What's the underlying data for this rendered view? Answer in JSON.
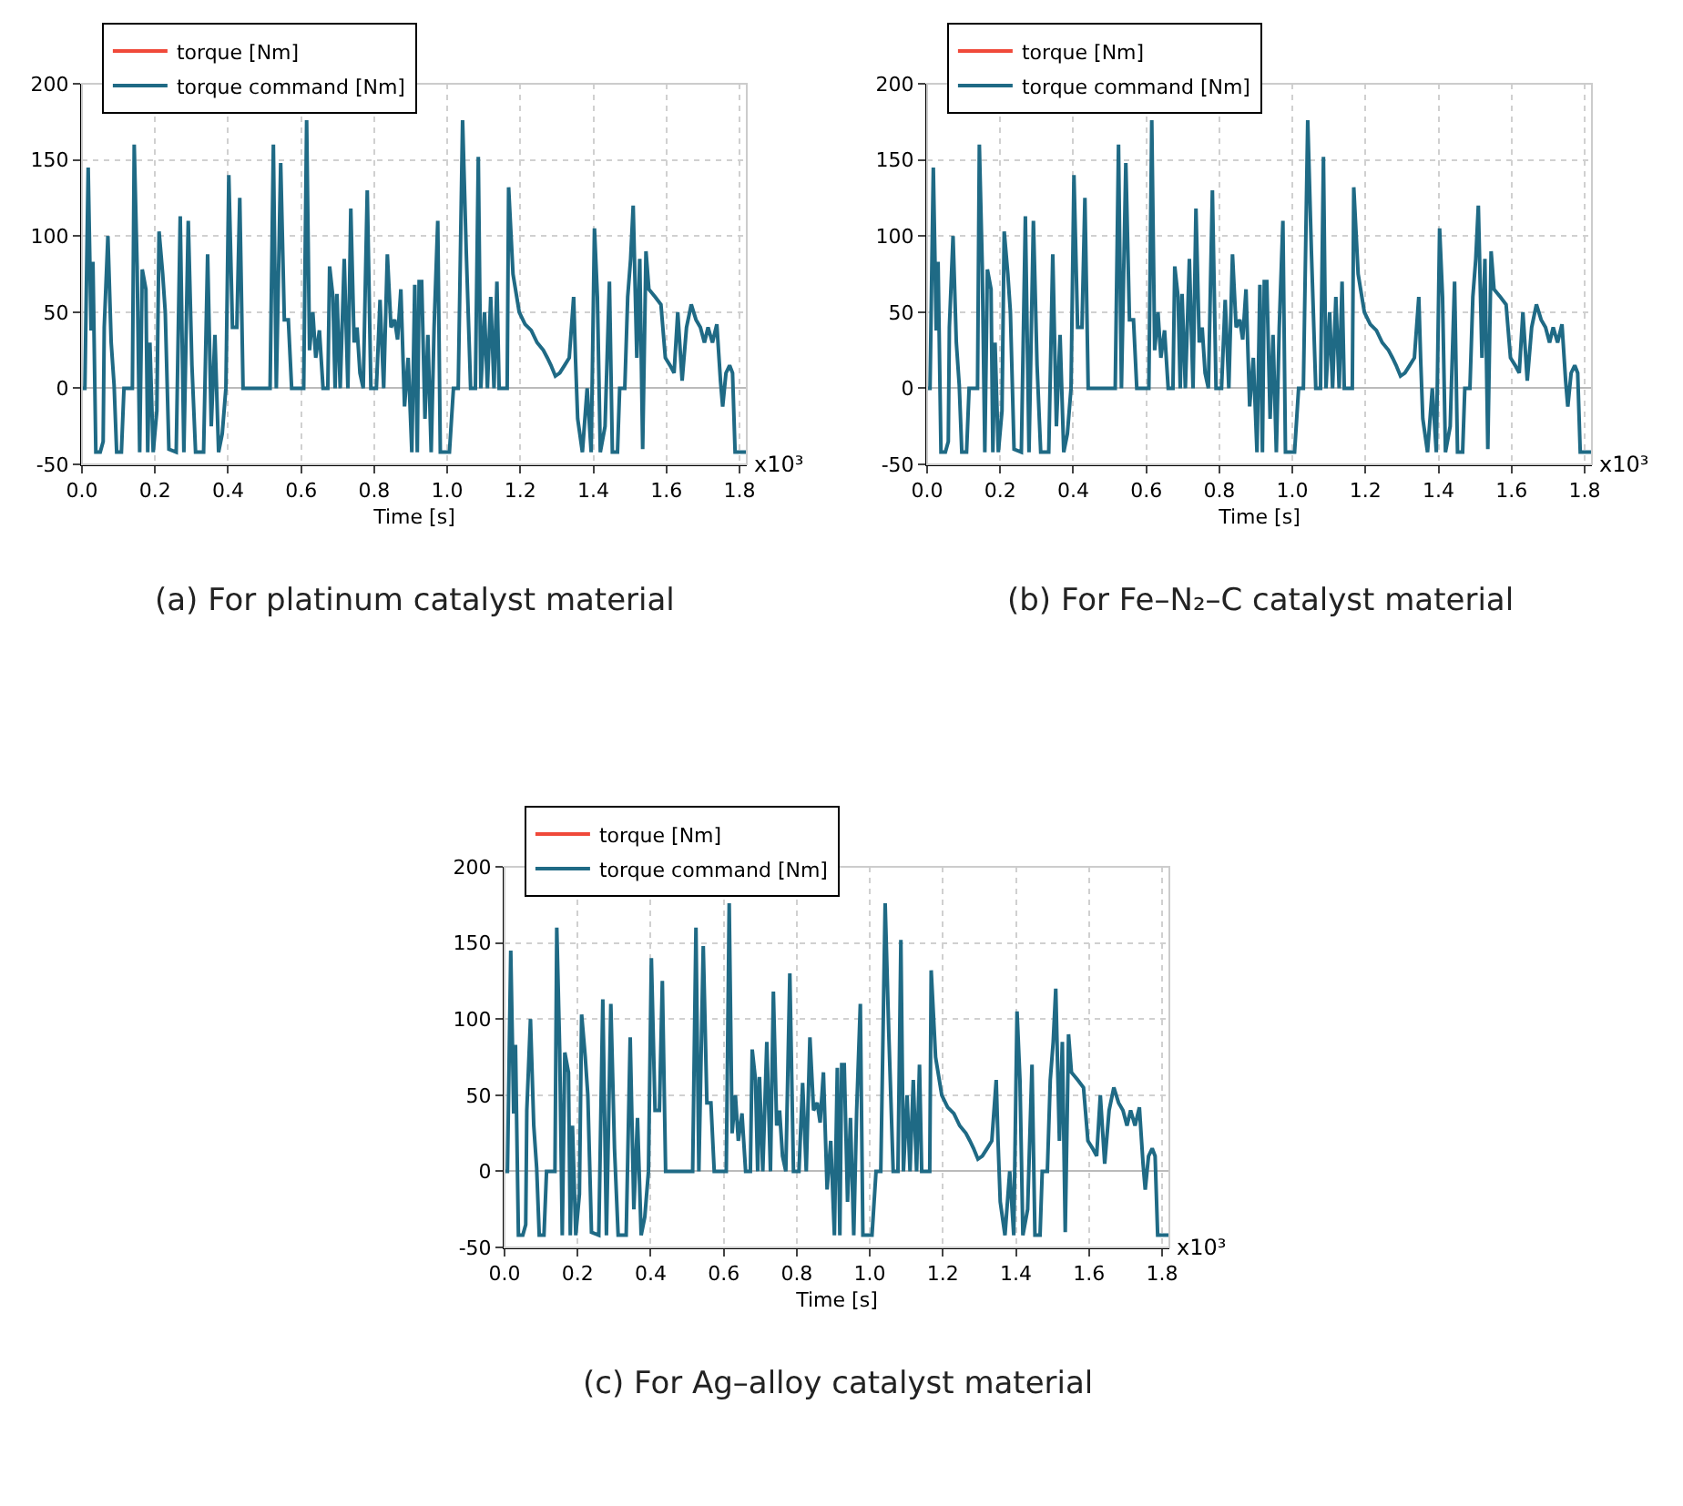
{
  "chart_data": [
    {
      "type": "line",
      "xlabel": "Time [s]",
      "annotations": [
        "x10³",
        "(a) For platinum catalyst material"
      ],
      "legend": "top left",
      "grid": true,
      "xlim": [
        0,
        1.82
      ],
      "ylim": [
        -50,
        200
      ],
      "xticks": [
        {
          "value": 0,
          "label": "0.0"
        },
        {
          "value": 0.2,
          "label": "0.2"
        },
        {
          "value": 0.4,
          "label": "0.4"
        },
        {
          "value": 0.6,
          "label": "0.6"
        },
        {
          "value": 0.8,
          "label": "0.8"
        },
        {
          "value": 1,
          "label": "1.0"
        },
        {
          "value": 1.2,
          "label": "1.2"
        },
        {
          "value": 1.4,
          "label": "1.4"
        },
        {
          "value": 1.6,
          "label": "1.6"
        },
        {
          "value": 1.8,
          "label": "1.8"
        }
      ],
      "yticks": [
        -50,
        0,
        50,
        100,
        150,
        200
      ],
      "x": [
        0,
        0.008,
        0.017,
        0.025,
        0.03,
        0.038,
        0.05,
        0.058,
        0.061,
        0.071,
        0.08,
        0.088,
        0.095,
        0.108,
        0.115,
        0.138,
        0.143,
        0.151,
        0.158,
        0.165,
        0.175,
        0.18,
        0.186,
        0.195,
        0.205,
        0.211,
        0.221,
        0.228,
        0.238,
        0.258,
        0.269,
        0.279,
        0.291,
        0.301,
        0.311,
        0.333,
        0.344,
        0.354,
        0.364,
        0.374,
        0.384,
        0.394,
        0.402,
        0.412,
        0.424,
        0.432,
        0.441,
        0.515,
        0.524,
        0.532,
        0.544,
        0.554,
        0.565,
        0.574,
        0.607,
        0.615,
        0.623,
        0.632,
        0.64,
        0.65,
        0.66,
        0.673,
        0.678,
        0.687,
        0.693,
        0.698,
        0.707,
        0.718,
        0.728,
        0.736,
        0.745,
        0.753,
        0.761,
        0.77,
        0.781,
        0.791,
        0.806,
        0.816,
        0.826,
        0.836,
        0.846,
        0.856,
        0.864,
        0.873,
        0.883,
        0.893,
        0.903,
        0.911,
        0.918,
        0.923,
        0.93,
        0.939,
        0.947,
        0.956,
        0.964,
        0.974,
        0.981,
        1.006,
        1.017,
        1.03,
        1.042,
        1.052,
        1.064,
        1.077,
        1.085,
        1.092,
        1.102,
        1.11,
        1.119,
        1.128,
        1.136,
        1.142,
        1.164,
        1.168,
        1.18,
        1.197,
        1.213,
        1.23,
        1.246,
        1.263,
        1.274,
        1.284,
        1.296,
        1.308,
        1.321,
        1.334,
        1.346,
        1.351,
        1.357,
        1.37,
        1.383,
        1.394,
        1.403,
        1.411,
        1.419,
        1.432,
        1.444,
        1.452,
        1.466,
        1.472,
        1.486,
        1.494,
        1.502,
        1.509,
        1.519,
        1.527,
        1.535,
        1.544,
        1.552,
        1.569,
        1.585,
        1.597,
        1.61,
        1.621,
        1.631,
        1.643,
        1.655,
        1.668,
        1.681,
        1.693,
        1.704,
        1.714,
        1.726,
        1.738,
        1.748,
        1.754,
        1.763,
        1.773,
        1.781,
        1.788,
        1.818
      ],
      "series": [
        {
          "name": "torque [Nm]",
          "color": "#f0493a",
          "values": [
            null,
            null,
            null,
            null,
            null,
            null,
            null,
            null,
            null,
            null,
            null,
            null,
            null,
            null,
            null,
            null,
            null,
            null,
            null,
            null,
            null,
            null,
            null,
            null,
            null,
            null,
            null,
            null,
            null,
            null,
            null,
            null,
            null,
            null,
            null,
            null,
            null,
            null,
            null,
            null,
            null,
            null,
            null,
            null,
            null,
            null,
            null,
            null,
            null,
            null,
            null,
            null,
            null,
            null,
            null,
            null,
            null,
            null,
            null,
            null,
            null,
            null,
            null,
            null,
            null,
            null,
            null,
            null,
            null,
            null,
            null,
            null,
            null,
            null,
            null,
            null,
            null,
            null,
            null,
            null,
            null,
            null,
            null,
            null,
            null,
            null,
            null,
            null,
            null,
            null,
            null,
            null,
            null,
            null,
            null,
            null,
            null,
            null,
            null,
            null,
            null,
            null,
            null,
            null,
            null,
            null,
            null,
            null,
            null,
            null,
            null,
            null,
            null,
            null,
            null,
            null,
            null,
            null,
            null,
            null,
            null,
            null,
            null,
            null,
            null,
            null,
            null,
            null,
            null,
            null,
            null,
            null,
            null,
            null,
            null,
            null,
            null,
            null,
            null,
            null,
            null,
            null,
            null,
            null,
            null,
            null,
            null,
            null,
            null,
            null,
            null,
            null,
            null,
            null,
            null,
            null,
            null,
            null,
            null,
            null,
            null,
            null,
            null,
            null,
            null,
            null,
            null,
            null,
            null,
            null,
            null
          ]
        },
        {
          "name": "torque command [Nm]",
          "color": "#1f6a85",
          "values": [
            0,
            0,
            145,
            38,
            83,
            -42,
            -42,
            -35,
            40,
            100,
            30,
            2,
            -42,
            -42,
            0,
            0,
            160,
            80,
            -42,
            78,
            65,
            -42,
            30,
            -42,
            -15,
            103,
            75,
            50,
            -40,
            -42,
            113,
            -42,
            110,
            15,
            -42,
            -42,
            88,
            -25,
            35,
            -42,
            -30,
            0,
            140,
            40,
            40,
            125,
            0,
            0,
            160,
            0,
            148,
            45,
            45,
            0,
            0,
            176,
            25,
            50,
            20,
            38,
            0,
            0,
            80,
            60,
            0,
            62,
            0,
            85,
            0,
            118,
            30,
            40,
            10,
            0,
            130,
            0,
            0,
            58,
            0,
            88,
            40,
            45,
            32,
            65,
            -12,
            20,
            -42,
            68,
            -42,
            70,
            70,
            -20,
            35,
            -42,
            40,
            110,
            -42,
            -42,
            0,
            0,
            176,
            90,
            0,
            0,
            152,
            0,
            50,
            0,
            60,
            0,
            70,
            0,
            0,
            132,
            75,
            50,
            42,
            38,
            30,
            25,
            20,
            15,
            8,
            10,
            15,
            20,
            60,
            20,
            -20,
            -42,
            0,
            -42,
            105,
            60,
            -42,
            -25,
            70,
            -42,
            -42,
            0,
            0,
            60,
            85,
            120,
            20,
            85,
            -40,
            90,
            65,
            60,
            55,
            20,
            15,
            10,
            50,
            5,
            40,
            55,
            45,
            40,
            30,
            40,
            30,
            42,
            5,
            -12,
            10,
            15,
            10,
            -42,
            -42
          ]
        }
      ]
    },
    {
      "type": "line",
      "xlabel": "Time [s]",
      "annotations": [
        "x10³",
        "(b) For Fe–N₂–C catalyst material"
      ],
      "legend": "top left",
      "grid": true,
      "xlim": [
        0,
        1.82
      ],
      "ylim": [
        -50,
        200
      ],
      "xticks": [
        {
          "value": 0,
          "label": "0.0"
        },
        {
          "value": 0.2,
          "label": "0.2"
        },
        {
          "value": 0.4,
          "label": "0.4"
        },
        {
          "value": 0.6,
          "label": "0.6"
        },
        {
          "value": 0.8,
          "label": "0.8"
        },
        {
          "value": 1,
          "label": "1.0"
        },
        {
          "value": 1.2,
          "label": "1.2"
        },
        {
          "value": 1.4,
          "label": "1.4"
        },
        {
          "value": 1.6,
          "label": "1.6"
        },
        {
          "value": 1.8,
          "label": "1.8"
        }
      ],
      "yticks": [
        -50,
        0,
        50,
        100,
        150,
        200
      ],
      "x": [
        0,
        0.008,
        0.017,
        0.025,
        0.03,
        0.038,
        0.05,
        0.058,
        0.061,
        0.071,
        0.08,
        0.088,
        0.095,
        0.108,
        0.115,
        0.138,
        0.143,
        0.151,
        0.158,
        0.165,
        0.175,
        0.18,
        0.186,
        0.195,
        0.205,
        0.211,
        0.221,
        0.228,
        0.238,
        0.258,
        0.269,
        0.279,
        0.291,
        0.301,
        0.311,
        0.333,
        0.344,
        0.354,
        0.364,
        0.374,
        0.384,
        0.394,
        0.402,
        0.412,
        0.424,
        0.432,
        0.441,
        0.515,
        0.524,
        0.532,
        0.544,
        0.554,
        0.565,
        0.574,
        0.607,
        0.615,
        0.623,
        0.632,
        0.64,
        0.65,
        0.66,
        0.673,
        0.678,
        0.687,
        0.693,
        0.698,
        0.707,
        0.718,
        0.728,
        0.736,
        0.745,
        0.753,
        0.761,
        0.77,
        0.781,
        0.791,
        0.806,
        0.816,
        0.826,
        0.836,
        0.846,
        0.856,
        0.864,
        0.873,
        0.883,
        0.893,
        0.903,
        0.911,
        0.918,
        0.923,
        0.93,
        0.939,
        0.947,
        0.956,
        0.964,
        0.974,
        0.981,
        1.006,
        1.017,
        1.03,
        1.042,
        1.052,
        1.064,
        1.077,
        1.085,
        1.092,
        1.102,
        1.11,
        1.119,
        1.128,
        1.136,
        1.142,
        1.164,
        1.168,
        1.18,
        1.197,
        1.213,
        1.23,
        1.246,
        1.263,
        1.274,
        1.284,
        1.296,
        1.308,
        1.321,
        1.334,
        1.346,
        1.351,
        1.357,
        1.37,
        1.383,
        1.394,
        1.403,
        1.411,
        1.419,
        1.432,
        1.444,
        1.452,
        1.466,
        1.472,
        1.486,
        1.494,
        1.502,
        1.509,
        1.519,
        1.527,
        1.535,
        1.544,
        1.552,
        1.569,
        1.585,
        1.597,
        1.61,
        1.621,
        1.631,
        1.643,
        1.655,
        1.668,
        1.681,
        1.693,
        1.704,
        1.714,
        1.726,
        1.738,
        1.748,
        1.754,
        1.763,
        1.773,
        1.781,
        1.788,
        1.818
      ],
      "series": [
        {
          "name": "torque [Nm]",
          "color": "#f0493a",
          "values": [
            null,
            null,
            null,
            null,
            null,
            null,
            null,
            null,
            null,
            null,
            null,
            null,
            null,
            null,
            null,
            null,
            null,
            null,
            null,
            null,
            null,
            null,
            null,
            null,
            null,
            null,
            null,
            null,
            null,
            null,
            null,
            null,
            null,
            null,
            null,
            null,
            null,
            null,
            null,
            null,
            null,
            null,
            null,
            null,
            null,
            null,
            null,
            null,
            null,
            null,
            null,
            null,
            null,
            null,
            null,
            null,
            null,
            null,
            null,
            null,
            null,
            null,
            null,
            null,
            null,
            null,
            null,
            null,
            null,
            null,
            null,
            null,
            null,
            null,
            null,
            null,
            null,
            null,
            null,
            null,
            null,
            null,
            null,
            null,
            null,
            null,
            null,
            null,
            null,
            null,
            null,
            null,
            null,
            null,
            null,
            null,
            null,
            null,
            null,
            null,
            null,
            null,
            null,
            null,
            null,
            null,
            null,
            null,
            null,
            null,
            null,
            null,
            null,
            null,
            null,
            null,
            null,
            null,
            null,
            null,
            null,
            null,
            null,
            null,
            null,
            null,
            null,
            null,
            null,
            null,
            null,
            null,
            null,
            null,
            null,
            null,
            null,
            null,
            null,
            null,
            null,
            null,
            null,
            null,
            null,
            null,
            null,
            null,
            null,
            null,
            null,
            null,
            null,
            null,
            null,
            null,
            null,
            null,
            null,
            null,
            null,
            null,
            null,
            null,
            null,
            null,
            null,
            null,
            null,
            null,
            null
          ]
        },
        {
          "name": "torque command [Nm]",
          "color": "#1f6a85",
          "values": [
            0,
            0,
            145,
            38,
            83,
            -42,
            -42,
            -35,
            40,
            100,
            30,
            2,
            -42,
            -42,
            0,
            0,
            160,
            80,
            -42,
            78,
            65,
            -42,
            30,
            -42,
            -15,
            103,
            75,
            50,
            -40,
            -42,
            113,
            -42,
            110,
            15,
            -42,
            -42,
            88,
            -25,
            35,
            -42,
            -30,
            0,
            140,
            40,
            40,
            125,
            0,
            0,
            160,
            0,
            148,
            45,
            45,
            0,
            0,
            176,
            25,
            50,
            20,
            38,
            0,
            0,
            80,
            60,
            0,
            62,
            0,
            85,
            0,
            118,
            30,
            40,
            10,
            0,
            130,
            0,
            0,
            58,
            0,
            88,
            40,
            45,
            32,
            65,
            -12,
            20,
            -42,
            68,
            -42,
            70,
            70,
            -20,
            35,
            -42,
            40,
            110,
            -42,
            -42,
            0,
            0,
            176,
            90,
            0,
            0,
            152,
            0,
            50,
            0,
            60,
            0,
            70,
            0,
            0,
            132,
            75,
            50,
            42,
            38,
            30,
            25,
            20,
            15,
            8,
            10,
            15,
            20,
            60,
            20,
            -20,
            -42,
            0,
            -42,
            105,
            60,
            -42,
            -25,
            70,
            -42,
            -42,
            0,
            0,
            60,
            85,
            120,
            20,
            85,
            -40,
            90,
            65,
            60,
            55,
            20,
            15,
            10,
            50,
            5,
            40,
            55,
            45,
            40,
            30,
            40,
            30,
            42,
            5,
            -12,
            10,
            15,
            10,
            -42,
            -42
          ]
        }
      ]
    },
    {
      "type": "line",
      "xlabel": "Time [s]",
      "annotations": [
        "x10³",
        "(c) For Ag–alloy catalyst material"
      ],
      "legend": "top left",
      "grid": true,
      "xlim": [
        0,
        1.82
      ],
      "ylim": [
        -50,
        200
      ],
      "xticks": [
        {
          "value": 0,
          "label": "0.0"
        },
        {
          "value": 0.2,
          "label": "0.2"
        },
        {
          "value": 0.4,
          "label": "0.4"
        },
        {
          "value": 0.6,
          "label": "0.6"
        },
        {
          "value": 0.8,
          "label": "0.8"
        },
        {
          "value": 1,
          "label": "1.0"
        },
        {
          "value": 1.2,
          "label": "1.2"
        },
        {
          "value": 1.4,
          "label": "1.4"
        },
        {
          "value": 1.6,
          "label": "1.6"
        },
        {
          "value": 1.8,
          "label": "1.8"
        }
      ],
      "yticks": [
        -50,
        0,
        50,
        100,
        150,
        200
      ],
      "x": [
        0,
        0.008,
        0.017,
        0.025,
        0.03,
        0.038,
        0.05,
        0.058,
        0.061,
        0.071,
        0.08,
        0.088,
        0.095,
        0.108,
        0.115,
        0.138,
        0.143,
        0.151,
        0.158,
        0.165,
        0.175,
        0.18,
        0.186,
        0.195,
        0.205,
        0.211,
        0.221,
        0.228,
        0.238,
        0.258,
        0.269,
        0.279,
        0.291,
        0.301,
        0.311,
        0.333,
        0.344,
        0.354,
        0.364,
        0.374,
        0.384,
        0.394,
        0.402,
        0.412,
        0.424,
        0.432,
        0.441,
        0.515,
        0.524,
        0.532,
        0.544,
        0.554,
        0.565,
        0.574,
        0.607,
        0.615,
        0.623,
        0.632,
        0.64,
        0.65,
        0.66,
        0.673,
        0.678,
        0.687,
        0.693,
        0.698,
        0.707,
        0.718,
        0.728,
        0.736,
        0.745,
        0.753,
        0.761,
        0.77,
        0.781,
        0.791,
        0.806,
        0.816,
        0.826,
        0.836,
        0.846,
        0.856,
        0.864,
        0.873,
        0.883,
        0.893,
        0.903,
        0.911,
        0.918,
        0.923,
        0.93,
        0.939,
        0.947,
        0.956,
        0.964,
        0.974,
        0.981,
        1.006,
        1.017,
        1.03,
        1.042,
        1.052,
        1.064,
        1.077,
        1.085,
        1.092,
        1.102,
        1.11,
        1.119,
        1.128,
        1.136,
        1.142,
        1.164,
        1.168,
        1.18,
        1.197,
        1.213,
        1.23,
        1.246,
        1.263,
        1.274,
        1.284,
        1.296,
        1.308,
        1.321,
        1.334,
        1.346,
        1.351,
        1.357,
        1.37,
        1.383,
        1.394,
        1.403,
        1.411,
        1.419,
        1.432,
        1.444,
        1.452,
        1.466,
        1.472,
        1.486,
        1.494,
        1.502,
        1.509,
        1.519,
        1.527,
        1.535,
        1.544,
        1.552,
        1.569,
        1.585,
        1.597,
        1.61,
        1.621,
        1.631,
        1.643,
        1.655,
        1.668,
        1.681,
        1.693,
        1.704,
        1.714,
        1.726,
        1.738,
        1.748,
        1.754,
        1.763,
        1.773,
        1.781,
        1.788,
        1.818
      ],
      "series": [
        {
          "name": "torque [Nm]",
          "color": "#f0493a",
          "values": [
            null,
            null,
            null,
            null,
            null,
            null,
            null,
            null,
            null,
            null,
            null,
            null,
            null,
            null,
            null,
            null,
            null,
            null,
            null,
            null,
            null,
            null,
            null,
            null,
            null,
            null,
            null,
            null,
            null,
            null,
            null,
            null,
            null,
            null,
            null,
            null,
            null,
            null,
            null,
            null,
            null,
            null,
            null,
            null,
            null,
            null,
            null,
            null,
            null,
            null,
            null,
            null,
            null,
            null,
            null,
            null,
            null,
            null,
            null,
            null,
            null,
            null,
            null,
            null,
            null,
            null,
            null,
            null,
            null,
            null,
            null,
            null,
            null,
            null,
            null,
            null,
            null,
            null,
            null,
            null,
            null,
            null,
            null,
            null,
            null,
            null,
            null,
            null,
            null,
            null,
            null,
            null,
            null,
            null,
            null,
            null,
            null,
            null,
            null,
            null,
            null,
            null,
            null,
            null,
            null,
            null,
            null,
            null,
            null,
            null,
            null,
            null,
            null,
            null,
            null,
            null,
            null,
            null,
            null,
            null,
            null,
            null,
            null,
            null,
            null,
            null,
            null,
            null,
            null,
            null,
            null,
            null,
            null,
            null,
            null,
            null,
            null,
            null,
            null,
            null,
            null,
            null,
            null,
            null,
            null,
            null,
            null,
            null,
            null,
            null,
            null,
            null,
            null,
            null,
            null,
            null,
            null,
            null,
            null,
            null,
            null,
            null,
            null,
            null,
            null,
            null,
            null,
            null,
            null,
            null,
            null
          ]
        },
        {
          "name": "torque command [Nm]",
          "color": "#1f6a85",
          "values": [
            0,
            0,
            145,
            38,
            83,
            -42,
            -42,
            -35,
            40,
            100,
            30,
            2,
            -42,
            -42,
            0,
            0,
            160,
            80,
            -42,
            78,
            65,
            -42,
            30,
            -42,
            -15,
            103,
            75,
            50,
            -40,
            -42,
            113,
            -42,
            110,
            15,
            -42,
            -42,
            88,
            -25,
            35,
            -42,
            -30,
            0,
            140,
            40,
            40,
            125,
            0,
            0,
            160,
            0,
            148,
            45,
            45,
            0,
            0,
            176,
            25,
            50,
            20,
            38,
            0,
            0,
            80,
            60,
            0,
            62,
            0,
            85,
            0,
            118,
            30,
            40,
            10,
            0,
            130,
            0,
            0,
            58,
            0,
            88,
            40,
            45,
            32,
            65,
            -12,
            20,
            -42,
            68,
            -42,
            70,
            70,
            -20,
            35,
            -42,
            40,
            110,
            -42,
            -42,
            0,
            0,
            176,
            90,
            0,
            0,
            152,
            0,
            50,
            0,
            60,
            0,
            70,
            0,
            0,
            132,
            75,
            50,
            42,
            38,
            30,
            25,
            20,
            15,
            8,
            10,
            15,
            20,
            60,
            20,
            -20,
            -42,
            0,
            -42,
            105,
            60,
            -42,
            -25,
            70,
            -42,
            -42,
            0,
            0,
            60,
            85,
            120,
            20,
            85,
            -40,
            90,
            65,
            60,
            55,
            20,
            15,
            10,
            50,
            5,
            40,
            55,
            45,
            40,
            30,
            40,
            30,
            42,
            5,
            -12,
            10,
            15,
            10,
            -42,
            -42
          ]
        }
      ]
    }
  ]
}
